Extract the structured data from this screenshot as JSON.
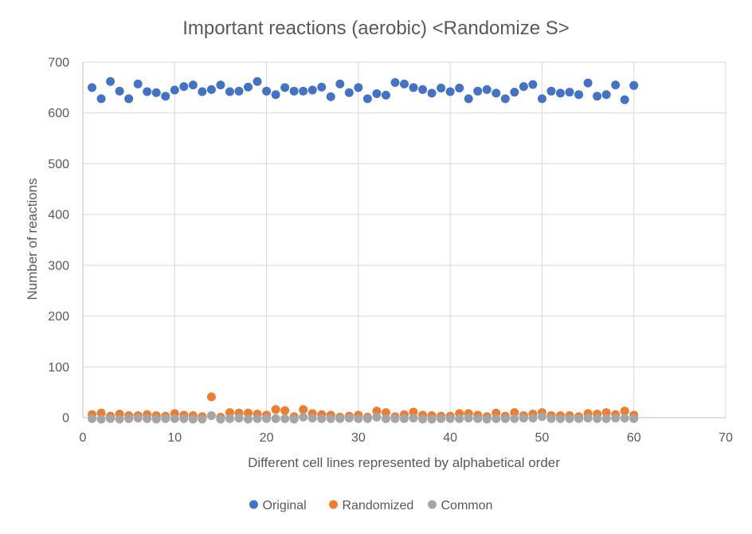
{
  "chart_data": {
    "type": "scatter",
    "title": "Important reactions (aerobic) <Randomize S>",
    "xlabel": "Different cell lines represented by alphabetical order",
    "ylabel": "Number of reactions",
    "xlim": [
      0,
      70
    ],
    "ylim": [
      0,
      700
    ],
    "x_ticks": [
      0,
      10,
      20,
      30,
      40,
      50,
      60,
      70
    ],
    "y_ticks": [
      0,
      100,
      200,
      300,
      400,
      500,
      600,
      700
    ],
    "grid": true,
    "legend_position": "bottom",
    "x": [
      1,
      2,
      3,
      4,
      5,
      6,
      7,
      8,
      9,
      10,
      11,
      12,
      13,
      14,
      15,
      16,
      17,
      18,
      19,
      20,
      21,
      22,
      23,
      24,
      25,
      26,
      27,
      28,
      29,
      30,
      31,
      32,
      33,
      34,
      35,
      36,
      37,
      38,
      39,
      40,
      41,
      42,
      43,
      44,
      45,
      46,
      47,
      48,
      49,
      50,
      51,
      52,
      53,
      54,
      55,
      56,
      57,
      58,
      59,
      60
    ],
    "series": [
      {
        "name": "Original",
        "color": "#4472C4",
        "values": [
          650,
          628,
          662,
          643,
          628,
          657,
          642,
          640,
          633,
          645,
          652,
          655,
          642,
          646,
          655,
          642,
          643,
          651,
          662,
          643,
          636,
          650,
          643,
          643,
          645,
          651,
          632,
          657,
          640,
          650,
          628,
          638,
          635,
          660,
          657,
          650,
          646,
          639,
          649,
          642,
          649,
          628,
          643,
          646,
          639,
          628,
          641,
          652,
          656,
          628,
          643,
          639,
          641,
          636,
          659,
          633,
          636,
          655,
          626,
          654
        ]
      },
      {
        "name": "Randomized",
        "color": "#ED7D31",
        "values": [
          6,
          9,
          3,
          7,
          4,
          4,
          6,
          4,
          3,
          8,
          5,
          4,
          2,
          41,
          1,
          10,
          9,
          9,
          7,
          5,
          16,
          14,
          2,
          16,
          8,
          6,
          5,
          1,
          3,
          5,
          1,
          13,
          10,
          2,
          6,
          11,
          5,
          4,
          3,
          3,
          8,
          8,
          5,
          2,
          9,
          3,
          10,
          4,
          7,
          10,
          4,
          4,
          4,
          2,
          8,
          7,
          10,
          6,
          13,
          5
        ]
      },
      {
        "name": "Common",
        "color": "#A5A5A5",
        "values": [
          -2,
          -3,
          -2,
          -3,
          -2,
          -1,
          -2,
          -3,
          -2,
          -2,
          -2,
          -3,
          -3,
          4,
          -3,
          -2,
          -1,
          -3,
          -2,
          -2,
          -2,
          -2,
          -3,
          1,
          -1,
          -2,
          -2,
          -2,
          -1,
          -2,
          -2,
          1,
          -2,
          -2,
          -2,
          -1,
          -3,
          -3,
          -2,
          -2,
          -2,
          -1,
          -2,
          -3,
          -2,
          -2,
          -2,
          -1,
          -1,
          2,
          -2,
          -2,
          -2,
          -2,
          -1,
          -2,
          -2,
          -1,
          -1,
          -2
        ]
      }
    ]
  }
}
